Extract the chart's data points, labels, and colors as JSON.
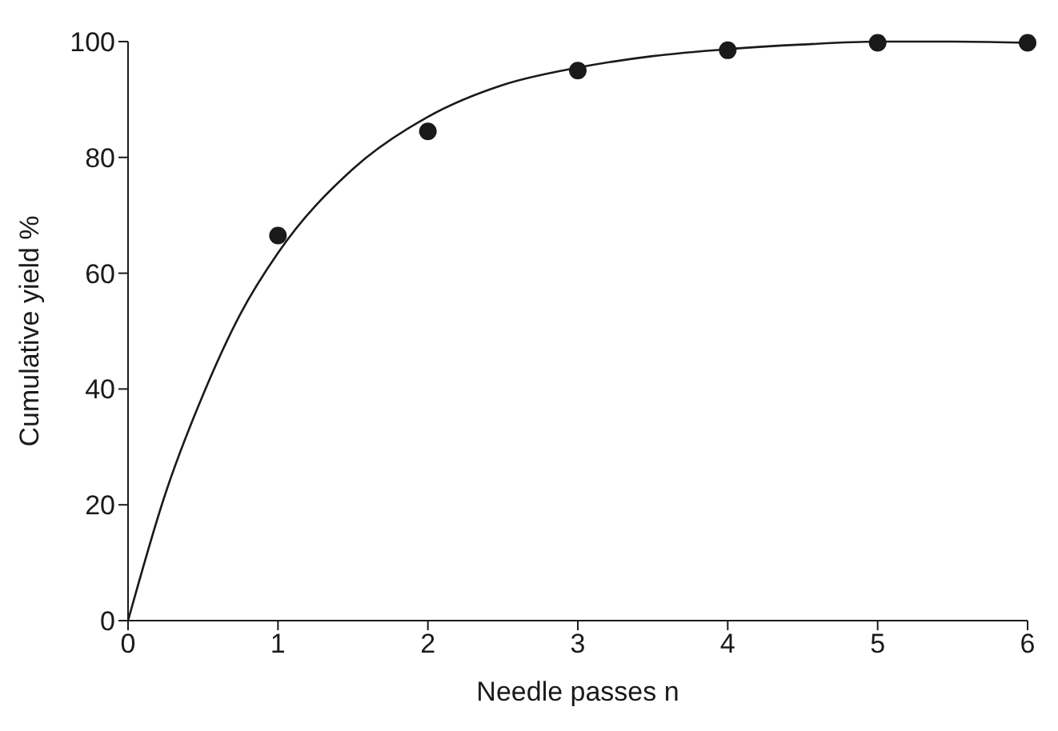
{
  "chart_data": {
    "type": "scatter",
    "xlabel": "Needle passes n",
    "ylabel": "Cumulative yield %",
    "xlim": [
      0,
      6
    ],
    "xticks": [
      0,
      1,
      2,
      3,
      4,
      5,
      6
    ],
    "ylim": [
      0,
      100
    ],
    "yticks": [
      0,
      20,
      40,
      60,
      80,
      100
    ],
    "marker": "circle",
    "series": [
      {
        "color": "#1a1a1a",
        "x": [
          1,
          2,
          3,
          4,
          5,
          6
        ],
        "values": [
          66.5,
          84.5,
          95,
          98.5,
          99.8,
          99.8
        ]
      },
      {
        "type": "line",
        "color": "#1a1a1a",
        "marker": "none",
        "line_style": "solid",
        "x": [
          0,
          0.25,
          0.5,
          0.75,
          1,
          1.5,
          2,
          2.5,
          3,
          3.5,
          4,
          4.5,
          5,
          5.5,
          6
        ],
        "values": [
          0,
          22,
          39,
          53,
          63.5,
          78,
          87,
          92.5,
          95.5,
          97.5,
          98.7,
          99.5,
          100,
          100,
          99.8
        ]
      }
    ]
  }
}
